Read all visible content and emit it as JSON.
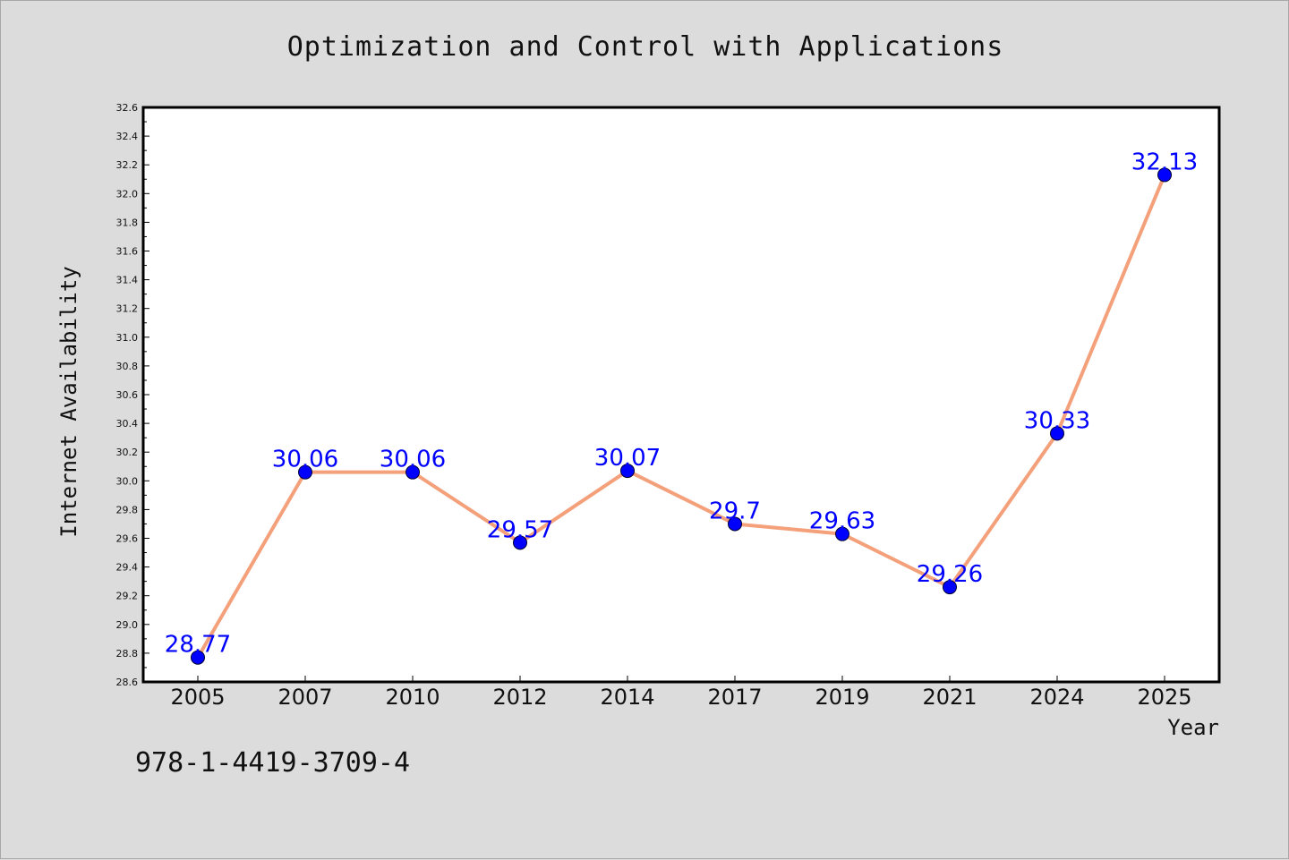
{
  "page": {
    "background": "#dcdcdc",
    "isbn": "978-1-4419-3709-4"
  },
  "chart_data": {
    "type": "line",
    "title": "Optimization and Control with Applications",
    "xlabel": "Year",
    "ylabel": "Internet Availability",
    "categories": [
      "2005",
      "2007",
      "2010",
      "2012",
      "2014",
      "2017",
      "2019",
      "2021",
      "2024",
      "2025"
    ],
    "series": [
      {
        "values": [
          28.77,
          30.06,
          30.06,
          29.57,
          30.07,
          29.7,
          29.63,
          29.26,
          30.33,
          32.13
        ],
        "data_labels": [
          "28.77",
          "30.06",
          "30.06",
          "29.57",
          "30.07",
          "29.7",
          "29.63",
          "29.26",
          "30.33",
          "32.13"
        ],
        "line_color": "#f4a07a",
        "marker_color": "#0000ff"
      }
    ],
    "ylim": [
      28.6,
      32.6
    ],
    "y_ticks": [
      "28.6",
      "28.8",
      "29.0",
      "29.2",
      "29.4",
      "29.6",
      "29.8",
      "30.0",
      "30.2",
      "30.4",
      "30.6",
      "30.8",
      "31.0",
      "31.2",
      "31.4",
      "31.6",
      "31.8",
      "32.0",
      "32.2",
      "32.4",
      "32.6"
    ],
    "grid": false,
    "legend": "none",
    "plot_background": "#ffffff",
    "label_color": "#0000ff"
  }
}
